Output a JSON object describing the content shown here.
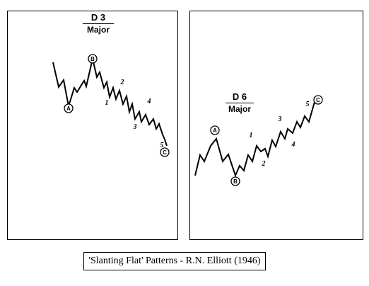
{
  "panels": [
    {
      "code": "D 3",
      "degree": "Major",
      "labels": {
        "A": "A",
        "B": "B",
        "C": "C",
        "n1": "1",
        "n2": "2",
        "n3": "3",
        "n4": "4",
        "n5": "5"
      }
    },
    {
      "code": "D 6",
      "degree": "Major",
      "labels": {
        "A": "A",
        "B": "B",
        "C": "C",
        "n1": "1",
        "n2": "2",
        "n3": "3",
        "n4": "4",
        "n5": "5"
      }
    }
  ],
  "caption": "'Slanting Flat' Patterns - R.N. Elliott (1946)"
}
